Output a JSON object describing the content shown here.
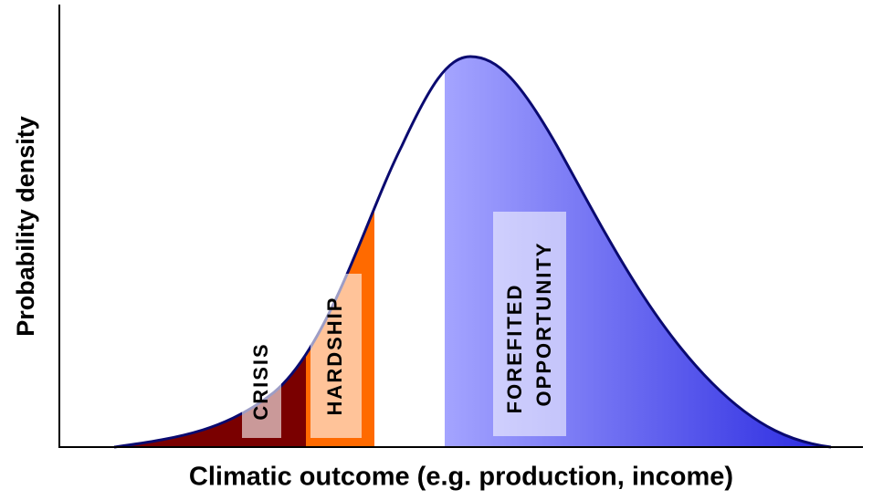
{
  "y_axis_label": "Probability density",
  "x_axis_label": "Climatic outcome (e.g. production, income)",
  "regions": [
    {
      "label": "CRISIS"
    },
    {
      "label": "HARDSHIP"
    },
    {
      "lines": [
        "FOREFITED",
        "OPPORTUNITY"
      ]
    }
  ]
}
